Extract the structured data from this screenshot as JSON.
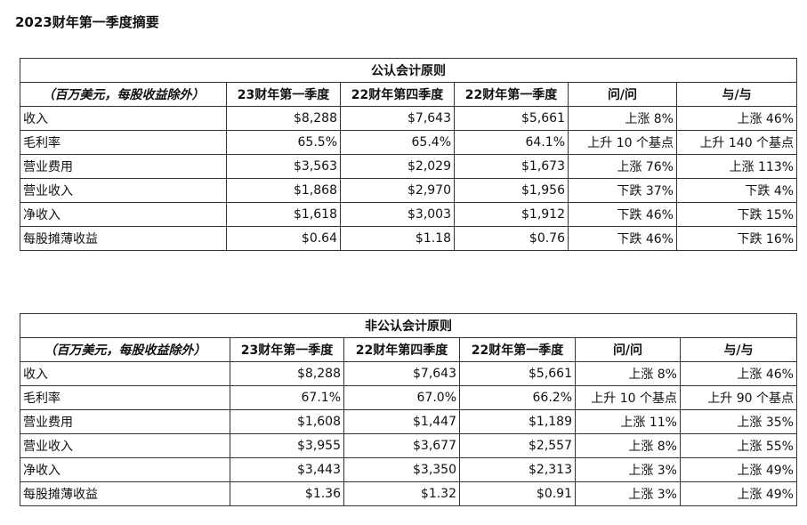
{
  "page_title": "2023财年第一季度摘要",
  "gaap": {
    "caption": "公认会计原则",
    "headers": [
      "（百万美元，每股收益除外）",
      "23财年第一季度",
      "22财年第四季度",
      "22财年第一季度",
      "问/问",
      "与/与"
    ],
    "rows": [
      [
        "收入",
        "$8,288",
        "$7,643",
        "$5,661",
        "上涨 8%",
        "上涨 46%"
      ],
      [
        "毛利率",
        "65.5%",
        "65.4%",
        "64.1%",
        "上升 10 个基点",
        "上升 140 个基点"
      ],
      [
        "营业费用",
        "$3,563",
        "$2,029",
        "$1,673",
        "上涨 76%",
        "上涨 113%"
      ],
      [
        "营业收入",
        "$1,868",
        "$2,970",
        "$1,956",
        "下跌 37%",
        "下跌 4%"
      ],
      [
        "净收入",
        "$1,618",
        "$3,003",
        "$1,912",
        "下跌 46%",
        "下跌 15%"
      ],
      [
        "每股摊薄收益",
        "$0.64",
        "$1.18",
        "$0.76",
        "下跌 46%",
        "下跌 16%"
      ]
    ]
  },
  "non_gaap": {
    "caption": "非公认会计原则",
    "headers": [
      "（百万美元，每股收益除外）",
      "23财年第一季度",
      "22财年第四季度",
      "22财年第一季度",
      "问/问",
      "与/与"
    ],
    "rows": [
      [
        "收入",
        "$8,288",
        "$7,643",
        "$5,661",
        "上涨 8%",
        "上涨 46%"
      ],
      [
        "毛利率",
        "67.1%",
        "67.0%",
        "66.2%",
        "上升 10 个基点",
        "上升 90 个基点"
      ],
      [
        "营业费用",
        "$1,608",
        "$1,447",
        "$1,189",
        "上涨 11%",
        "上涨 35%"
      ],
      [
        "营业收入",
        "$3,955",
        "$3,677",
        "$2,557",
        "上涨 8%",
        "上涨 55%"
      ],
      [
        "净收入",
        "$3,443",
        "$3,350",
        "$2,313",
        "上涨 3%",
        "上涨 49%"
      ],
      [
        "每股摊薄收益",
        "$1.36",
        "$1.32",
        "$0.91",
        "上涨 3%",
        "上涨 49%"
      ]
    ]
  }
}
